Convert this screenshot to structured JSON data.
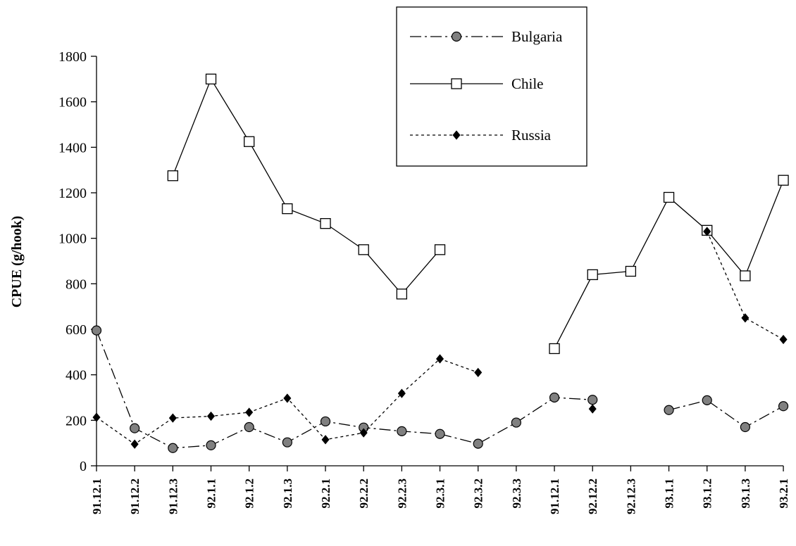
{
  "chart_data": {
    "type": "line",
    "title": "",
    "xlabel": "",
    "ylabel": "CPUE (g/hook)",
    "ylim": [
      0,
      1800
    ],
    "yticks": [
      0,
      200,
      400,
      600,
      800,
      1000,
      1200,
      1400,
      1600,
      1800
    ],
    "categories": [
      "91.12.1",
      "91.12.2",
      "91.12.3",
      "92.1.1",
      "92.1.2",
      "92.1.3",
      "92.2.1",
      "92.2.2",
      "92.2.3",
      "92.3.1",
      "92.3.2",
      "92.3.3",
      "91.12.1",
      "92.12.2",
      "92.12.3",
      "93.1.1",
      "93.1.2",
      "93.1.3",
      "93.2.1"
    ],
    "legend_position": "top-right",
    "grid": false,
    "series": [
      {
        "name": "Bulgaria",
        "marker": "circle",
        "line_style": "dash-dot",
        "color": "#808080",
        "values": [
          595,
          165,
          78,
          90,
          170,
          103,
          195,
          168,
          152,
          140,
          97,
          190,
          300,
          290,
          null,
          245,
          288,
          170,
          262
        ]
      },
      {
        "name": "Chile",
        "marker": "square",
        "line_style": "solid",
        "color": "#ffffff",
        "values": [
          null,
          null,
          1275,
          1700,
          1425,
          1130,
          1065,
          950,
          755,
          950,
          null,
          null,
          515,
          840,
          855,
          1180,
          1035,
          835,
          1255
        ]
      },
      {
        "name": "Russia",
        "marker": "diamond",
        "line_style": "dotted",
        "color": "#000000",
        "values": [
          213,
          95,
          210,
          218,
          235,
          297,
          115,
          145,
          318,
          470,
          410,
          null,
          null,
          250,
          null,
          null,
          1030,
          650,
          555
        ]
      }
    ]
  }
}
